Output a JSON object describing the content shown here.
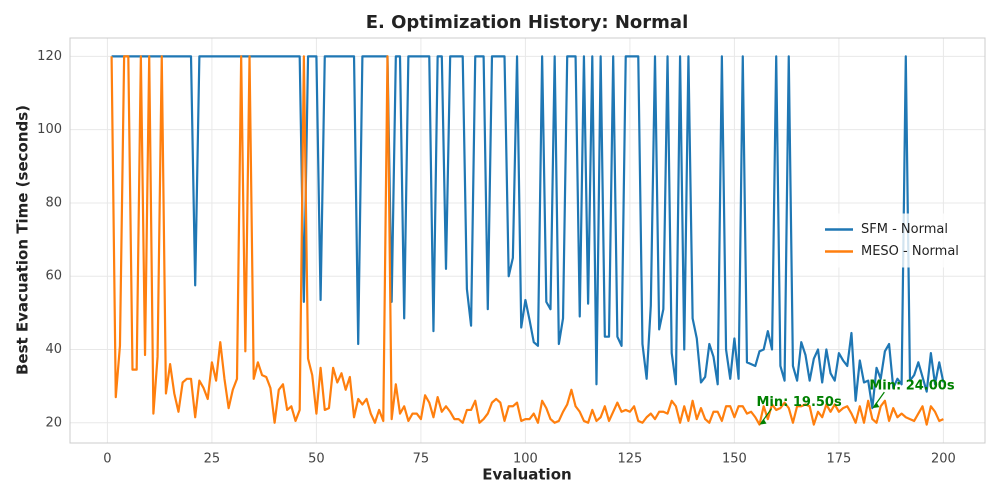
{
  "chart_data": {
    "type": "line",
    "title": "E. Optimization History: Normal",
    "x_label": "Evaluation",
    "y_label": "Best Evacuation Time (seconds)",
    "x": [
      1,
      2,
      3,
      4,
      5,
      6,
      7,
      8,
      9,
      10,
      11,
      12,
      13,
      14,
      15,
      16,
      17,
      18,
      19,
      20,
      21,
      22,
      23,
      24,
      25,
      26,
      27,
      28,
      29,
      30,
      31,
      32,
      33,
      34,
      35,
      36,
      37,
      38,
      39,
      40,
      41,
      42,
      43,
      44,
      45,
      46,
      47,
      48,
      49,
      50,
      51,
      52,
      53,
      54,
      55,
      56,
      57,
      58,
      59,
      60,
      61,
      62,
      63,
      64,
      65,
      66,
      67,
      68,
      69,
      70,
      71,
      72,
      73,
      74,
      75,
      76,
      77,
      78,
      79,
      80,
      81,
      82,
      83,
      84,
      85,
      86,
      87,
      88,
      89,
      90,
      91,
      92,
      93,
      94,
      95,
      96,
      97,
      98,
      99,
      100,
      101,
      102,
      103,
      104,
      105,
      106,
      107,
      108,
      109,
      110,
      111,
      112,
      113,
      114,
      115,
      116,
      117,
      118,
      119,
      120,
      121,
      122,
      123,
      124,
      125,
      126,
      127,
      128,
      129,
      130,
      131,
      132,
      133,
      134,
      135,
      136,
      137,
      138,
      139,
      140,
      141,
      142,
      143,
      144,
      145,
      146,
      147,
      148,
      149,
      150,
      151,
      152,
      153,
      154,
      155,
      156,
      157,
      158,
      159,
      160,
      161,
      162,
      163,
      164,
      165,
      166,
      167,
      168,
      169,
      170,
      171,
      172,
      173,
      174,
      175,
      176,
      177,
      178,
      179,
      180,
      181,
      182,
      183,
      184,
      185,
      186,
      187,
      188,
      189,
      190,
      191,
      192,
      193,
      194,
      195,
      196,
      197,
      198,
      199,
      200
    ],
    "series": [
      {
        "name": "SFM - Normal",
        "color": "#1f77b4",
        "values": [
          120,
          120,
          120,
          120,
          120,
          120,
          120,
          120,
          120,
          120,
          120,
          120,
          120,
          120,
          120,
          120,
          120,
          120,
          120,
          120,
          57.5,
          120,
          120,
          120,
          120,
          120,
          120,
          120,
          120,
          120,
          120,
          120,
          120,
          120,
          120,
          120,
          120,
          120,
          120,
          120,
          120,
          120,
          120,
          120,
          120,
          120,
          53,
          120,
          120,
          120,
          53.5,
          120,
          120,
          120,
          120,
          120,
          120,
          120,
          120,
          41.5,
          120,
          120,
          120,
          120,
          120,
          120,
          120,
          53,
          120,
          120,
          48.5,
          120,
          120,
          120,
          120,
          120,
          120,
          45,
          120,
          120,
          62,
          120,
          120,
          120,
          120,
          56.5,
          46.5,
          120,
          120,
          120,
          51,
          120,
          120,
          120,
          120,
          60,
          65,
          120,
          46,
          53.5,
          48,
          42,
          41,
          120,
          53,
          51,
          120,
          41.5,
          48.5,
          120,
          120,
          120,
          49,
          120,
          52.5,
          120,
          30.5,
          120,
          43.5,
          43.5,
          120,
          43.5,
          41,
          120,
          120,
          120,
          120,
          41.5,
          32,
          52,
          120,
          45.5,
          51,
          120,
          39,
          30.5,
          120,
          40,
          120,
          48.5,
          43,
          31,
          32.5,
          41.5,
          38,
          30.5,
          120,
          40,
          32,
          43,
          32,
          120,
          36.5,
          36,
          35.5,
          39.5,
          40,
          45,
          40,
          120,
          35.5,
          31.5,
          120,
          35.5,
          31.5,
          42,
          38.5,
          31.5,
          37.5,
          40,
          31,
          40,
          33.5,
          31.5,
          39,
          37,
          35.5,
          44.5,
          26,
          37,
          31,
          31.5,
          24,
          35,
          32,
          39.5,
          41.5,
          29.5,
          32,
          30.5,
          120,
          31.5,
          33,
          36.5,
          32.5,
          28.5,
          39,
          30.5,
          36.5,
          31
        ]
      },
      {
        "name": "MESO - Normal",
        "color": "#ff7f0e",
        "values": [
          120,
          27,
          41,
          120,
          120,
          34.5,
          34.5,
          120,
          38.5,
          120,
          22.5,
          38,
          120,
          28,
          36,
          28,
          23,
          31,
          32,
          32,
          21.5,
          31.5,
          29.5,
          26.5,
          36.5,
          31.5,
          42,
          32,
          24,
          29,
          32,
          120,
          39.5,
          120,
          32,
          36.5,
          33,
          32.5,
          29.5,
          20,
          29,
          30.5,
          23.5,
          24.5,
          20.5,
          23.5,
          120,
          37.5,
          33,
          22.5,
          35,
          23.5,
          24,
          35,
          31,
          33.5,
          29,
          32.5,
          21.5,
          26.5,
          25,
          26.5,
          22.5,
          20,
          23.5,
          20.5,
          120,
          21,
          30.5,
          22.5,
          24.5,
          20.5,
          22.5,
          22.5,
          21,
          27.5,
          25.5,
          21.5,
          27,
          23,
          24.5,
          23,
          21,
          21,
          20,
          23.5,
          23.5,
          26,
          20,
          21,
          22.5,
          25.5,
          26.5,
          25.5,
          20.5,
          24.5,
          24.5,
          25.5,
          20.5,
          21,
          21,
          22.5,
          20,
          26,
          24,
          21,
          20,
          20.5,
          23,
          25,
          29,
          24.5,
          23,
          20.5,
          20,
          23.5,
          20.5,
          21.5,
          24.5,
          20.5,
          23,
          25.5,
          23,
          23.5,
          23,
          24.5,
          20.5,
          20,
          21.5,
          22.5,
          21,
          23,
          23,
          22.5,
          26,
          24.5,
          20,
          24.5,
          20.5,
          26,
          21,
          24,
          21,
          20,
          23,
          23,
          20.5,
          24.5,
          24.5,
          21.5,
          24.5,
          24.5,
          22.5,
          23,
          21.5,
          19.5,
          24.5,
          21,
          25,
          23.5,
          24,
          25.5,
          24,
          20,
          24.5,
          24.5,
          25,
          24.5,
          19.5,
          23,
          21.5,
          25,
          23,
          25,
          23,
          24,
          24.5,
          22.5,
          20,
          24.5,
          20,
          26,
          21,
          20,
          24.5,
          26,
          20.5,
          24,
          21.5,
          22.5,
          21.5,
          21,
          20.5,
          22.5,
          24.5,
          19.5,
          24.5,
          23,
          20.5,
          21
        ]
      }
    ],
    "annotations": [
      {
        "text": "Min: 19.50s",
        "x": 156,
        "y": 19.5,
        "color": "green"
      },
      {
        "text": "Min: 24.00s",
        "x": 183,
        "y": 24,
        "color": "green"
      }
    ],
    "xlim": [
      -8.95,
      209.95
    ],
    "ylim": [
      14.475,
      125.025
    ],
    "xticks": [
      0,
      25,
      50,
      75,
      100,
      125,
      150,
      175,
      200
    ],
    "yticks": [
      20,
      40,
      60,
      80,
      100,
      120
    ],
    "grid": true,
    "legend": "center right"
  }
}
